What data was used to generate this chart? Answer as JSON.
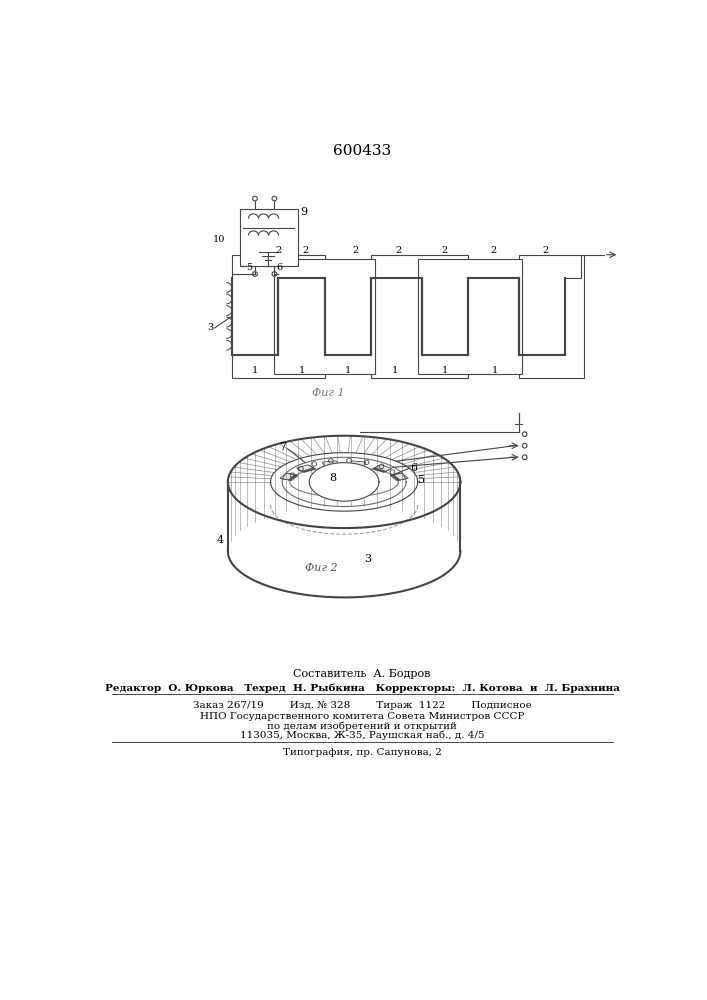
{
  "title": "600433",
  "bg_color": "#ffffff",
  "line_color": "#444444",
  "fig1_label": "Фиг 1",
  "fig2_label": "Фиг 2",
  "footer_line0": "Составитель  А. Бодров",
  "footer_line1": "Редактор  О. Юркова   Техред  Н. Рыбкина   Корректоры:  Л. Котова  и  Л. Брахнина",
  "footer_line2": "Заказ 267/19        Изд. № 328        Тираж  1122        Подписное",
  "footer_line3": "НПО Государственного комитета Совета Министров СССР",
  "footer_line4": "по делам изобретений и открытий",
  "footer_line5": "113035, Москва, Ж-35, Раушская наб., д. 4/5",
  "footer_line6": "Типография, пр. Сапунова, 2"
}
